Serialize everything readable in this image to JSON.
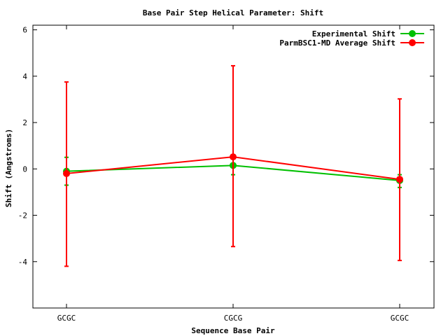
{
  "chart_data": {
    "type": "line",
    "title": "Base Pair Step Helical Parameter: Shift",
    "xlabel": "Sequence Base Pair",
    "ylabel": "Shift (Angstroms)",
    "categories": [
      "GCGC",
      "CGCG",
      "GCGC"
    ],
    "ylim": [
      -6,
      6.2
    ],
    "yticks": [
      6,
      4,
      2,
      0,
      -2,
      -4
    ],
    "ytick_labels": [
      "6",
      "4",
      "2",
      "0",
      "-2",
      "-4"
    ],
    "grid": false,
    "legend_position": "top-right",
    "series": [
      {
        "name": "Experimental Shift",
        "color": "#00c000",
        "values": [
          -0.1,
          0.15,
          -0.5
        ],
        "err_low": [
          -0.7,
          -0.25,
          -0.8
        ],
        "err_high": [
          0.5,
          0.5,
          -0.25
        ]
      },
      {
        "name": "ParmBSC1-MD Average Shift",
        "color": "#ff0000",
        "values": [
          -0.2,
          0.52,
          -0.45
        ],
        "err_low": [
          -4.2,
          -3.35,
          -3.95
        ],
        "err_high": [
          3.75,
          4.45,
          3.02
        ]
      }
    ]
  }
}
